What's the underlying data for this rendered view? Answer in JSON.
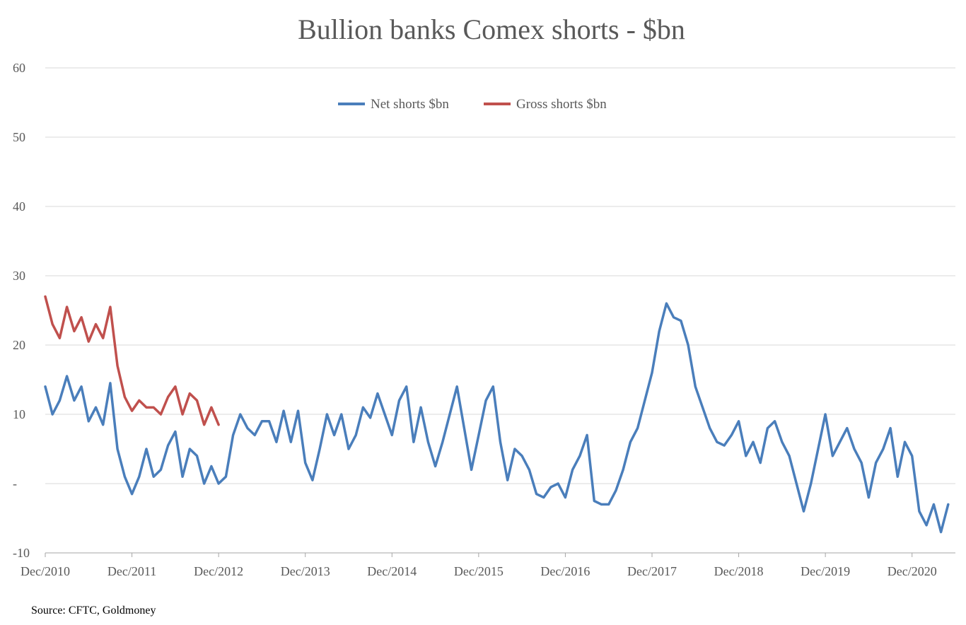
{
  "source_note": "Source: CFTC, Goldmoney",
  "chart_data": {
    "type": "line",
    "title": "Bullion banks Comex shorts - $bn",
    "xlabel": "",
    "ylabel": "",
    "ylim": [
      -10,
      60
    ],
    "yticks": [
      60,
      50,
      40,
      30,
      20,
      10,
      0,
      -10
    ],
    "ytick_labels": [
      "60",
      "50",
      "40",
      "30",
      "20",
      "10",
      "-",
      "-10"
    ],
    "xlim": [
      "2010-12",
      "2021-06"
    ],
    "xtick_labels": [
      "Dec/2010",
      "Dec/2011",
      "Dec/2012",
      "Dec/2013",
      "Dec/2014",
      "Dec/2015",
      "Dec/2016",
      "Dec/2017",
      "Dec/2018",
      "Dec/2019",
      "Dec/2020"
    ],
    "xtick_dates": [
      "2010-12",
      "2011-12",
      "2012-12",
      "2013-12",
      "2014-12",
      "2015-12",
      "2016-12",
      "2017-12",
      "2018-12",
      "2019-12",
      "2020-12"
    ],
    "grid": "horizontal",
    "legend_position": "top-center",
    "series": [
      {
        "name": "Net shorts $bn",
        "color": "#4a7ebb",
        "points": [
          [
            "2010-12",
            14
          ],
          [
            "2011-01",
            10
          ],
          [
            "2011-02",
            12
          ],
          [
            "2011-03",
            15.5
          ],
          [
            "2011-04",
            12
          ],
          [
            "2011-05",
            14
          ],
          [
            "2011-06",
            9
          ],
          [
            "2011-07",
            11
          ],
          [
            "2011-08",
            8.5
          ],
          [
            "2011-09",
            14.5
          ],
          [
            "2011-10",
            5
          ],
          [
            "2011-11",
            1
          ],
          [
            "2011-12",
            -1.5
          ],
          [
            "2012-01",
            1
          ],
          [
            "2012-02",
            5
          ],
          [
            "2012-03",
            1
          ],
          [
            "2012-04",
            2
          ],
          [
            "2012-05",
            5.5
          ],
          [
            "2012-06",
            7.5
          ],
          [
            "2012-07",
            1
          ],
          [
            "2012-08",
            5
          ],
          [
            "2012-09",
            4
          ],
          [
            "2012-10",
            0
          ],
          [
            "2012-11",
            2.5
          ],
          [
            "2012-12",
            0
          ],
          [
            "2013-01",
            1
          ],
          [
            "2013-02",
            7
          ],
          [
            "2013-03",
            10
          ],
          [
            "2013-04",
            8
          ],
          [
            "2013-05",
            7
          ],
          [
            "2013-06",
            9
          ],
          [
            "2013-07",
            9
          ],
          [
            "2013-08",
            6
          ],
          [
            "2013-09",
            10.5
          ],
          [
            "2013-10",
            6
          ],
          [
            "2013-11",
            10.5
          ],
          [
            "2013-12",
            3
          ],
          [
            "2014-01",
            0.5
          ],
          [
            "2014-02",
            5
          ],
          [
            "2014-03",
            10
          ],
          [
            "2014-04",
            7
          ],
          [
            "2014-05",
            10
          ],
          [
            "2014-06",
            5
          ],
          [
            "2014-07",
            7
          ],
          [
            "2014-08",
            11
          ],
          [
            "2014-09",
            9.5
          ],
          [
            "2014-10",
            13
          ],
          [
            "2014-11",
            10
          ],
          [
            "2014-12",
            7
          ],
          [
            "2015-01",
            12
          ],
          [
            "2015-02",
            14
          ],
          [
            "2015-03",
            6
          ],
          [
            "2015-04",
            11
          ],
          [
            "2015-05",
            6
          ],
          [
            "2015-06",
            2.5
          ],
          [
            "2015-07",
            6
          ],
          [
            "2015-08",
            10
          ],
          [
            "2015-09",
            14
          ],
          [
            "2015-10",
            8
          ],
          [
            "2015-11",
            2
          ],
          [
            "2015-12",
            7
          ],
          [
            "2016-01",
            12
          ],
          [
            "2016-02",
            14
          ],
          [
            "2016-03",
            6
          ],
          [
            "2016-04",
            0.5
          ],
          [
            "2016-05",
            5
          ],
          [
            "2016-06",
            4
          ],
          [
            "2016-07",
            2
          ],
          [
            "2016-08",
            -1.5
          ],
          [
            "2016-09",
            -2
          ],
          [
            "2016-10",
            -0.5
          ],
          [
            "2016-11",
            0
          ],
          [
            "2016-12",
            -2
          ],
          [
            "2017-01",
            2
          ],
          [
            "2017-02",
            4
          ],
          [
            "2017-03",
            7
          ],
          [
            "2017-04",
            -2.5
          ],
          [
            "2017-05",
            -3
          ],
          [
            "2017-06",
            -3
          ],
          [
            "2017-07",
            -1
          ],
          [
            "2017-08",
            2
          ],
          [
            "2017-09",
            6
          ],
          [
            "2017-10",
            8
          ],
          [
            "2017-11",
            12
          ],
          [
            "2017-12",
            16
          ],
          [
            "2018-01",
            22
          ],
          [
            "2018-02",
            26
          ],
          [
            "2018-03",
            24
          ],
          [
            "2018-04",
            23.5
          ],
          [
            "2018-05",
            20
          ],
          [
            "2018-06",
            14
          ],
          [
            "2018-07",
            11
          ],
          [
            "2018-08",
            8
          ],
          [
            "2018-09",
            6
          ],
          [
            "2018-10",
            5.5
          ],
          [
            "2018-11",
            7
          ],
          [
            "2018-12",
            9
          ],
          [
            "2019-01",
            4
          ],
          [
            "2019-02",
            6
          ],
          [
            "2019-03",
            3
          ],
          [
            "2019-04",
            8
          ],
          [
            "2019-05",
            9
          ],
          [
            "2019-06",
            6
          ],
          [
            "2019-07",
            4
          ],
          [
            "2019-08",
            0
          ],
          [
            "2019-09",
            -4
          ],
          [
            "2019-10",
            0
          ],
          [
            "2019-11",
            5
          ],
          [
            "2019-12",
            10
          ],
          [
            "2020-01",
            4
          ],
          [
            "2020-02",
            6
          ],
          [
            "2020-03",
            8
          ],
          [
            "2020-04",
            5
          ],
          [
            "2020-05",
            3
          ],
          [
            "2020-06",
            -2
          ],
          [
            "2020-07",
            3
          ],
          [
            "2020-08",
            5
          ],
          [
            "2020-09",
            8
          ],
          [
            "2020-10",
            1
          ],
          [
            "2020-11",
            6
          ],
          [
            "2020-12",
            4
          ],
          [
            "2021-01",
            -4
          ],
          [
            "2021-02",
            -6
          ],
          [
            "2021-03",
            -3
          ],
          [
            "2021-04",
            -7
          ],
          [
            "2021-05",
            -3
          ]
        ]
      },
      {
        "name": "Gross shorts $bn",
        "color": "#c0504d",
        "points": [
          [
            "2010-12",
            27
          ],
          [
            "2011-01",
            23
          ],
          [
            "2011-02",
            21
          ],
          [
            "2011-03",
            25.5
          ],
          [
            "2011-04",
            22
          ],
          [
            "2011-05",
            24
          ],
          [
            "2011-06",
            20.5
          ],
          [
            "2011-07",
            23
          ],
          [
            "2011-08",
            21
          ],
          [
            "2011-09",
            25.5
          ],
          [
            "2011-10",
            17
          ],
          [
            "2011-11",
            12.5
          ],
          [
            "2011-12",
            10.5
          ],
          [
            "2012-01",
            12
          ],
          [
            "2012-02",
            11
          ],
          [
            "2012-03",
            11
          ],
          [
            "2012-04",
            10
          ],
          [
            "2012-05",
            12.5
          ],
          [
            "2012-06",
            14
          ],
          [
            "2012-07",
            10
          ],
          [
            "2012-08",
            13
          ],
          [
            "2012-09",
            12
          ],
          [
            "2012-10",
            8.5
          ],
          [
            "2012-11",
            11
          ],
          [
            "2012-12",
            8.5
          ]
        ]
      }
    ]
  }
}
